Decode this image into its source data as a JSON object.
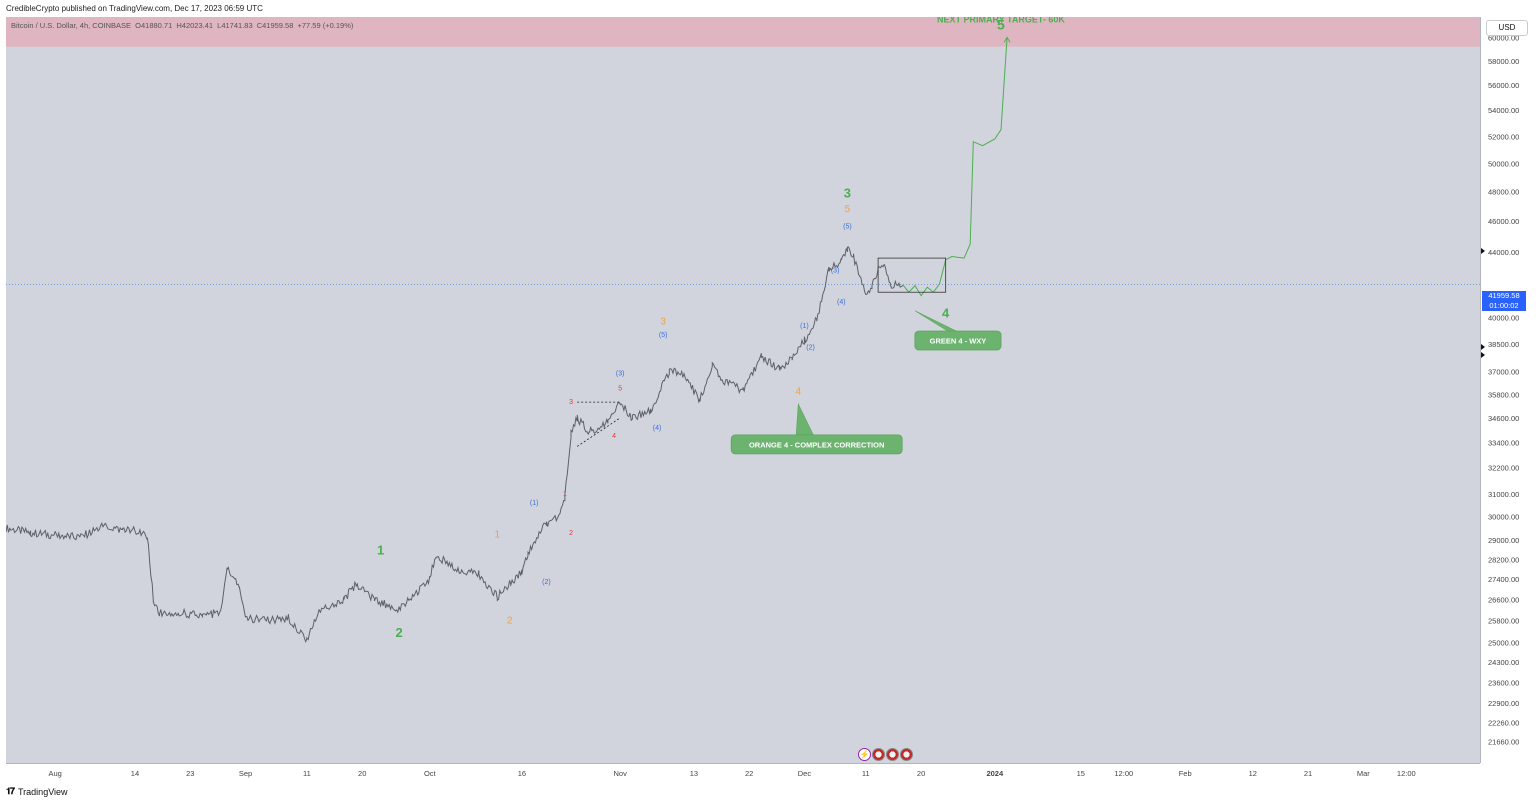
{
  "header": {
    "published_by": "CredibleCrypto published on TradingView.com, Dec 17, 2023 06:59 UTC"
  },
  "legend": {
    "symbol": "Bitcoin / U.S. Dollar, 4h, COINBASE",
    "open": "O41880.71",
    "high": "H42023.41",
    "low": "L41741.83",
    "close": "C41959.58",
    "change": "+77.59 (+0.19%)"
  },
  "axis": {
    "currency": "USD",
    "price_current": "41959.58",
    "countdown": "01:00:02"
  },
  "footer": {
    "brand": "TradingView"
  },
  "colors": {
    "background": "#d1d4dc",
    "candle": "#5d6066",
    "wave_primary": "#4caf50",
    "wave_orange": "#f7a035",
    "wave_blue": "#3b6fd6",
    "wave_red": "#e53935",
    "target_zone": "#e0b5c2",
    "current_price_line": "#5b8ee0"
  },
  "chart_data": {
    "type": "line",
    "title": "Bitcoin / U.S. Dollar, 4h, COINBASE",
    "ylim": [
      21000,
      61800
    ],
    "y_ticks": [
      60000,
      58000,
      56000,
      54000,
      52000,
      50000,
      48000,
      46000,
      44000,
      42000,
      40000,
      38500,
      37000,
      35800,
      34600,
      33400,
      32200,
      31000,
      30000,
      29000,
      28200,
      27400,
      26600,
      25800,
      25000,
      24300,
      23600,
      22900,
      22260,
      21660
    ],
    "y_tick_labels": [
      "60000.00",
      "58000.00",
      "56000.00",
      "54000.00",
      "52000.00",
      "50000.00",
      "48000.00",
      "46000.00",
      "44000.00",
      "",
      "40000.00",
      "38500.00",
      "37000.00",
      "35800.00",
      "34600.00",
      "33400.00",
      "32200.00",
      "31000.00",
      "30000.00",
      "29000.00",
      "28200.00",
      "27400.00",
      "26600.00",
      "25800.00",
      "25000.00",
      "24300.00",
      "23600.00",
      "22900.00",
      "22260.00",
      "21660.00"
    ],
    "x_ticks": [
      {
        "label": "Aug",
        "x": "2023-08-01"
      },
      {
        "label": "14",
        "x": "2023-08-14"
      },
      {
        "label": "23",
        "x": "2023-08-23"
      },
      {
        "label": "Sep",
        "x": "2023-09-01"
      },
      {
        "label": "11",
        "x": "2023-09-11"
      },
      {
        "label": "20",
        "x": "2023-09-20"
      },
      {
        "label": "Oct",
        "x": "2023-10-01"
      },
      {
        "label": "16",
        "x": "2023-10-16"
      },
      {
        "label": "Nov",
        "x": "2023-11-01"
      },
      {
        "label": "13",
        "x": "2023-11-13"
      },
      {
        "label": "22",
        "x": "2023-11-22"
      },
      {
        "label": "Dec",
        "x": "2023-12-01"
      },
      {
        "label": "11",
        "x": "2023-12-11"
      },
      {
        "label": "20",
        "x": "2023-12-20"
      },
      {
        "label": "2024",
        "x": "2024-01-01"
      },
      {
        "label": "15",
        "x": "2024-01-15"
      },
      {
        "label": "12:00",
        "x": "2024-01-22"
      },
      {
        "label": "Feb",
        "x": "2024-02-01"
      },
      {
        "label": "12",
        "x": "2024-02-12"
      },
      {
        "label": "21",
        "x": "2024-02-21"
      },
      {
        "label": "Mar",
        "x": "2024-03-01"
      },
      {
        "label": "12:00",
        "x": "2024-03-08"
      }
    ],
    "series": [
      {
        "name": "BTCUSD",
        "kind": "price",
        "points": [
          [
            "2023-07-24",
            29500
          ],
          [
            "2023-07-28",
            29300
          ],
          [
            "2023-08-01",
            29200
          ],
          [
            "2023-08-05",
            29100
          ],
          [
            "2023-08-09",
            29600
          ],
          [
            "2023-08-12",
            29400
          ],
          [
            "2023-08-14",
            29400
          ],
          [
            "2023-08-16",
            29100
          ],
          [
            "2023-08-17",
            26600
          ],
          [
            "2023-08-18",
            26100
          ],
          [
            "2023-08-21",
            26100
          ],
          [
            "2023-08-25",
            26000
          ],
          [
            "2023-08-28",
            26100
          ],
          [
            "2023-08-29",
            27900
          ],
          [
            "2023-08-31",
            27100
          ],
          [
            "2023-09-01",
            25900
          ],
          [
            "2023-09-05",
            25800
          ],
          [
            "2023-09-08",
            25900
          ],
          [
            "2023-09-11",
            25100
          ],
          [
            "2023-09-13",
            26200
          ],
          [
            "2023-09-17",
            26600
          ],
          [
            "2023-09-19",
            27200
          ],
          [
            "2023-09-22",
            26600
          ],
          [
            "2023-09-26",
            26200
          ],
          [
            "2023-09-29",
            26900
          ],
          [
            "2023-10-01",
            27400
          ],
          [
            "2023-10-02",
            28400
          ],
          [
            "2023-10-05",
            27800
          ],
          [
            "2023-10-09",
            27600
          ],
          [
            "2023-10-12",
            26700
          ],
          [
            "2023-10-16",
            27700
          ],
          [
            "2023-10-17",
            28500
          ],
          [
            "2023-10-20",
            29700
          ],
          [
            "2023-10-22",
            30000
          ],
          [
            "2023-10-23",
            30800
          ],
          [
            "2023-10-24",
            33800
          ],
          [
            "2023-10-25",
            34600
          ],
          [
            "2023-10-27",
            33900
          ],
          [
            "2023-10-30",
            34400
          ],
          [
            "2023-11-01",
            35400
          ],
          [
            "2023-11-03",
            34600
          ],
          [
            "2023-11-06",
            35000
          ],
          [
            "2023-11-09",
            37000
          ],
          [
            "2023-11-11",
            36900
          ],
          [
            "2023-11-14",
            35500
          ],
          [
            "2023-11-16",
            37300
          ],
          [
            "2023-11-18",
            36500
          ],
          [
            "2023-11-21",
            36000
          ],
          [
            "2023-11-24",
            37800
          ],
          [
            "2023-11-27",
            37100
          ],
          [
            "2023-11-29",
            37800
          ],
          [
            "2023-12-01",
            38700
          ],
          [
            "2023-12-03",
            39900
          ],
          [
            "2023-12-05",
            42900
          ],
          [
            "2023-12-07",
            43400
          ],
          [
            "2023-12-08",
            44200
          ],
          [
            "2023-12-09",
            43700
          ],
          [
            "2023-12-11",
            41200
          ],
          [
            "2023-12-12",
            41800
          ],
          [
            "2023-12-13",
            42900
          ],
          [
            "2023-12-14",
            43000
          ],
          [
            "2023-12-15",
            42000
          ],
          [
            "2023-12-17",
            41960
          ]
        ]
      },
      {
        "name": "Projection",
        "kind": "projection",
        "points": [
          [
            "2023-12-17",
            41960
          ],
          [
            "2023-12-18",
            41500
          ],
          [
            "2023-12-19",
            41900
          ],
          [
            "2023-12-20",
            41300
          ],
          [
            "2023-12-21",
            41800
          ],
          [
            "2023-12-22",
            41500
          ],
          [
            "2023-12-23",
            42000
          ],
          [
            "2023-12-24",
            43500
          ],
          [
            "2023-12-25",
            43700
          ],
          [
            "2023-12-27",
            43600
          ],
          [
            "2023-12-28",
            44500
          ],
          [
            "2023-12-28.5",
            51600
          ],
          [
            "2023-12-30",
            51300
          ],
          [
            "2024-01-01",
            51800
          ],
          [
            "2024-01-02",
            52500
          ],
          [
            "2024-01-03",
            60000
          ]
        ]
      }
    ],
    "annotations": [
      {
        "text": "NEXT PRIMARY TARGET- 60K",
        "x": "2024-01-02",
        "y": 61300,
        "color": "wave_primary",
        "size": 9,
        "bold": true
      },
      {
        "text": "5",
        "x": "2024-01-02",
        "y": 60700,
        "color": "wave_primary",
        "size": 14,
        "bold": true
      },
      {
        "text": "1",
        "x": "2023-09-23",
        "y": 28400,
        "color": "wave_primary",
        "size": 13,
        "bold": true
      },
      {
        "text": "2",
        "x": "2023-09-26",
        "y": 25200,
        "color": "wave_primary",
        "size": 13,
        "bold": true
      },
      {
        "text": "3",
        "x": "2023-12-08",
        "y": 47600,
        "color": "wave_primary",
        "size": 13,
        "bold": true
      },
      {
        "text": "4",
        "x": "2023-12-24",
        "y": 40000,
        "color": "wave_primary",
        "size": 13,
        "bold": true
      },
      {
        "text": "1",
        "x": "2023-10-12",
        "y": 29100,
        "color": "wave_orange",
        "size": 10
      },
      {
        "text": "2",
        "x": "2023-10-14",
        "y": 25700,
        "color": "wave_orange",
        "size": 10
      },
      {
        "text": "3",
        "x": "2023-11-08",
        "y": 39600,
        "color": "wave_orange",
        "size": 10
      },
      {
        "text": "4",
        "x": "2023-11-30",
        "y": 35800,
        "color": "wave_orange",
        "size": 10
      },
      {
        "text": "5",
        "x": "2023-12-08",
        "y": 46600,
        "color": "wave_orange",
        "size": 10
      },
      {
        "text": "(1)",
        "x": "2023-10-18",
        "y": 30500,
        "color": "wave_blue",
        "size": 7
      },
      {
        "text": "(2)",
        "x": "2023-10-20",
        "y": 27200,
        "color": "wave_blue",
        "size": 7
      },
      {
        "text": "(3)",
        "x": "2023-11-01",
        "y": 36800,
        "color": "wave_blue",
        "size": 7
      },
      {
        "text": "(4)",
        "x": "2023-11-07",
        "y": 34000,
        "color": "wave_blue",
        "size": 7
      },
      {
        "text": "(5)",
        "x": "2023-11-08",
        "y": 38900,
        "color": "wave_blue",
        "size": 7
      },
      {
        "text": "(1)",
        "x": "2023-12-01",
        "y": 39400,
        "color": "wave_blue",
        "size": 7
      },
      {
        "text": "(2)",
        "x": "2023-12-02",
        "y": 38200,
        "color": "wave_blue",
        "size": 7
      },
      {
        "text": "(3)",
        "x": "2023-12-06",
        "y": 42700,
        "color": "wave_blue",
        "size": 7
      },
      {
        "text": "(4)",
        "x": "2023-12-07",
        "y": 40800,
        "color": "wave_blue",
        "size": 7
      },
      {
        "text": "(5)",
        "x": "2023-12-08",
        "y": 45500,
        "color": "wave_blue",
        "size": 7
      },
      {
        "text": "1",
        "x": "2023-10-23",
        "y": 30900,
        "color": "wave_red",
        "size": 7
      },
      {
        "text": "2",
        "x": "2023-10-24",
        "y": 29200,
        "color": "wave_red",
        "size": 7
      },
      {
        "text": "3",
        "x": "2023-10-24",
        "y": 35300,
        "color": "wave_red",
        "size": 7
      },
      {
        "text": "4",
        "x": "2023-10-31",
        "y": 33600,
        "color": "wave_red",
        "size": 7
      },
      {
        "text": "5",
        "x": "2023-11-01",
        "y": 36000,
        "color": "wave_red",
        "size": 7
      }
    ],
    "callouts": [
      {
        "text": "ORANGE 4 -  COMPLEX CORRECTION",
        "x": "2023-12-03",
        "y": 33300,
        "tip_x": "2023-11-30",
        "tip_y": 35300
      },
      {
        "text": "GREEN 4 -  WXY",
        "x": "2023-12-26",
        "y": 38700,
        "tip_x": "2023-12-19",
        "tip_y": 40400
      }
    ],
    "boxes": [
      {
        "x0": "2023-12-13",
        "x1": "2023-12-24",
        "y0": 41500,
        "y1": 43600
      }
    ],
    "triangle": {
      "top": [
        [
          "2023-10-25",
          35400
        ],
        [
          "2023-11-01",
          35400
        ]
      ],
      "bottom": [
        [
          "2023-10-25",
          33200
        ],
        [
          "2023-11-01",
          34600
        ]
      ]
    },
    "target_zone": {
      "y0": 59200,
      "y1": 62000
    },
    "current_price": 41959.58
  }
}
